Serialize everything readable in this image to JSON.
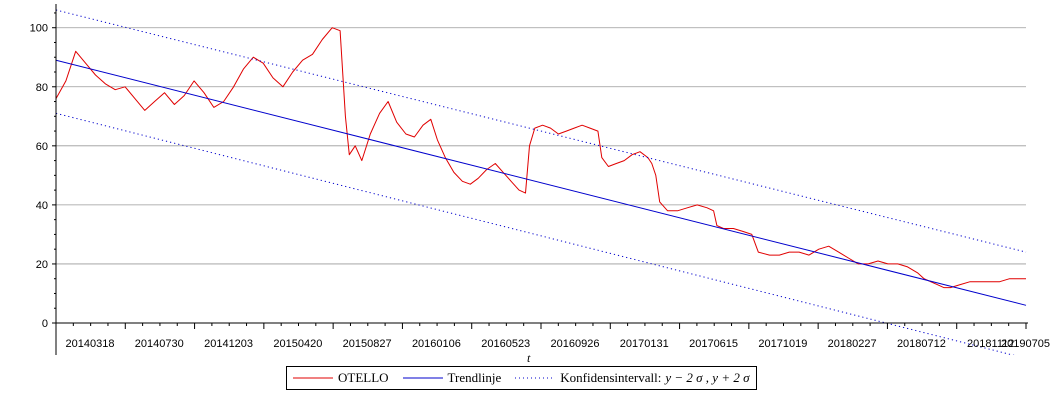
{
  "chart_data": {
    "type": "line",
    "title": "",
    "xlabel": "t",
    "ylabel": "",
    "ylim": [
      0,
      106
    ],
    "yticks": [
      0,
      20,
      40,
      60,
      80,
      100
    ],
    "x_tick_labels": [
      "20140318",
      "20140730",
      "20141203",
      "20150420",
      "20150827",
      "20160106",
      "20160523",
      "20160926",
      "20170131",
      "20170615",
      "20171019",
      "20180227",
      "20180712",
      "20181112",
      "20190705"
    ],
    "x_count": 1330,
    "grid": "horizontal",
    "legend_position": "bottom-center",
    "series": [
      {
        "name": "OTELLO",
        "color": "#e00000",
        "style": "solid",
        "points": [
          [
            0,
            76
          ],
          [
            15,
            82
          ],
          [
            30,
            92
          ],
          [
            45,
            88
          ],
          [
            60,
            84
          ],
          [
            75,
            81
          ],
          [
            90,
            79
          ],
          [
            105,
            80
          ],
          [
            120,
            76
          ],
          [
            135,
            72
          ],
          [
            150,
            75
          ],
          [
            165,
            78
          ],
          [
            180,
            74
          ],
          [
            195,
            77
          ],
          [
            210,
            82
          ],
          [
            225,
            78
          ],
          [
            240,
            73
          ],
          [
            255,
            75
          ],
          [
            270,
            80
          ],
          [
            285,
            86
          ],
          [
            300,
            90
          ],
          [
            315,
            88
          ],
          [
            330,
            83
          ],
          [
            345,
            80
          ],
          [
            360,
            85
          ],
          [
            375,
            89
          ],
          [
            390,
            91
          ],
          [
            405,
            96
          ],
          [
            420,
            100
          ],
          [
            432,
            99
          ],
          [
            440,
            70
          ],
          [
            446,
            57
          ],
          [
            455,
            60
          ],
          [
            465,
            55
          ],
          [
            478,
            64
          ],
          [
            492,
            71
          ],
          [
            505,
            75
          ],
          [
            518,
            68
          ],
          [
            532,
            64
          ],
          [
            545,
            63
          ],
          [
            558,
            67
          ],
          [
            570,
            69
          ],
          [
            580,
            62
          ],
          [
            592,
            56
          ],
          [
            605,
            51
          ],
          [
            618,
            48
          ],
          [
            630,
            47
          ],
          [
            642,
            49
          ],
          [
            655,
            52
          ],
          [
            668,
            54
          ],
          [
            680,
            51
          ],
          [
            692,
            48
          ],
          [
            704,
            45
          ],
          [
            714,
            44
          ],
          [
            720,
            60
          ],
          [
            728,
            66
          ],
          [
            740,
            67
          ],
          [
            752,
            66
          ],
          [
            764,
            64
          ],
          [
            776,
            65
          ],
          [
            788,
            66
          ],
          [
            800,
            67
          ],
          [
            812,
            66
          ],
          [
            824,
            65
          ],
          [
            830,
            56
          ],
          [
            840,
            53
          ],
          [
            852,
            54
          ],
          [
            864,
            55
          ],
          [
            876,
            57
          ],
          [
            888,
            58
          ],
          [
            900,
            56
          ],
          [
            906,
            54
          ],
          [
            912,
            50
          ],
          [
            918,
            41
          ],
          [
            930,
            38
          ],
          [
            945,
            38
          ],
          [
            960,
            39
          ],
          [
            975,
            40
          ],
          [
            990,
            39
          ],
          [
            1000,
            38
          ],
          [
            1005,
            33
          ],
          [
            1015,
            32
          ],
          [
            1030,
            32
          ],
          [
            1045,
            31
          ],
          [
            1058,
            30
          ],
          [
            1068,
            24
          ],
          [
            1085,
            23
          ],
          [
            1100,
            23
          ],
          [
            1115,
            24
          ],
          [
            1130,
            24
          ],
          [
            1145,
            23
          ],
          [
            1160,
            25
          ],
          [
            1175,
            26
          ],
          [
            1190,
            24
          ],
          [
            1205,
            22
          ],
          [
            1220,
            20
          ],
          [
            1235,
            20
          ],
          [
            1250,
            21
          ],
          [
            1265,
            20
          ],
          [
            1280,
            20
          ],
          [
            1295,
            19
          ],
          [
            1310,
            17
          ],
          [
            1320,
            15
          ],
          [
            1330,
            14
          ],
          [
            1340,
            13
          ],
          [
            1350,
            12
          ],
          [
            1360,
            12
          ],
          [
            1375,
            13
          ],
          [
            1390,
            14
          ],
          [
            1405,
            14
          ],
          [
            1420,
            14
          ],
          [
            1435,
            14
          ],
          [
            1450,
            15
          ],
          [
            1465,
            15
          ],
          [
            1475,
            15
          ]
        ]
      },
      {
        "name": "Trendlinje",
        "color": "#0000cc",
        "style": "solid",
        "points": [
          [
            0,
            89
          ],
          [
            1475,
            6
          ]
        ]
      },
      {
        "name": "Konfidensintervall:",
        "color": "#0000cc",
        "style": "dotted",
        "points": [
          [
            0,
            106
          ],
          [
            1475,
            24
          ]
        ]
      },
      {
        "name": "",
        "color": "#0000cc",
        "style": "dotted",
        "points": [
          [
            0,
            71
          ],
          [
            1475,
            -12
          ]
        ]
      }
    ],
    "x_domain": [
      0,
      1475
    ]
  },
  "legend": {
    "otello_label": "OTELLO",
    "trend_label": "Trendlinje",
    "ci_label": "Konfidensintervall:",
    "ci_math": "y − 2 σ , y + 2 σ"
  }
}
